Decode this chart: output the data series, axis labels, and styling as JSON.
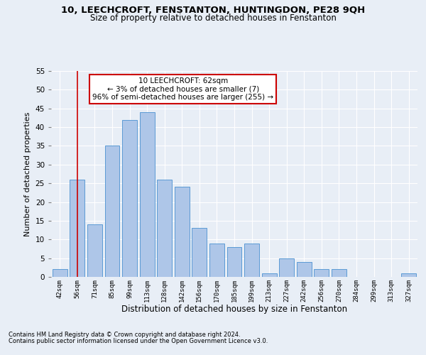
{
  "title": "10, LEECHCROFT, FENSTANTON, HUNTINGDON, PE28 9QH",
  "subtitle": "Size of property relative to detached houses in Fenstanton",
  "xlabel": "Distribution of detached houses by size in Fenstanton",
  "ylabel": "Number of detached properties",
  "bar_labels": [
    "42sqm",
    "56sqm",
    "71sqm",
    "85sqm",
    "99sqm",
    "113sqm",
    "128sqm",
    "142sqm",
    "156sqm",
    "170sqm",
    "185sqm",
    "199sqm",
    "213sqm",
    "227sqm",
    "242sqm",
    "256sqm",
    "270sqm",
    "284sqm",
    "299sqm",
    "313sqm",
    "327sqm"
  ],
  "bar_values": [
    2,
    26,
    14,
    35,
    42,
    44,
    26,
    24,
    13,
    9,
    8,
    9,
    1,
    5,
    4,
    2,
    2,
    0,
    0,
    0,
    1
  ],
  "bar_color": "#aec6e8",
  "bar_edgecolor": "#5b9bd5",
  "vline_x": 1.0,
  "annotation_text": "10 LEECHCROFT: 62sqm\n← 3% of detached houses are smaller (7)\n96% of semi-detached houses are larger (255) →",
  "annotation_box_facecolor": "#ffffff",
  "annotation_box_edgecolor": "#cc0000",
  "vline_color": "#cc0000",
  "bg_color": "#e8eef6",
  "grid_color": "#ffffff",
  "footer1": "Contains HM Land Registry data © Crown copyright and database right 2024.",
  "footer2": "Contains public sector information licensed under the Open Government Licence v3.0.",
  "ylim": [
    0,
    55
  ],
  "yticks": [
    0,
    5,
    10,
    15,
    20,
    25,
    30,
    35,
    40,
    45,
    50,
    55
  ]
}
